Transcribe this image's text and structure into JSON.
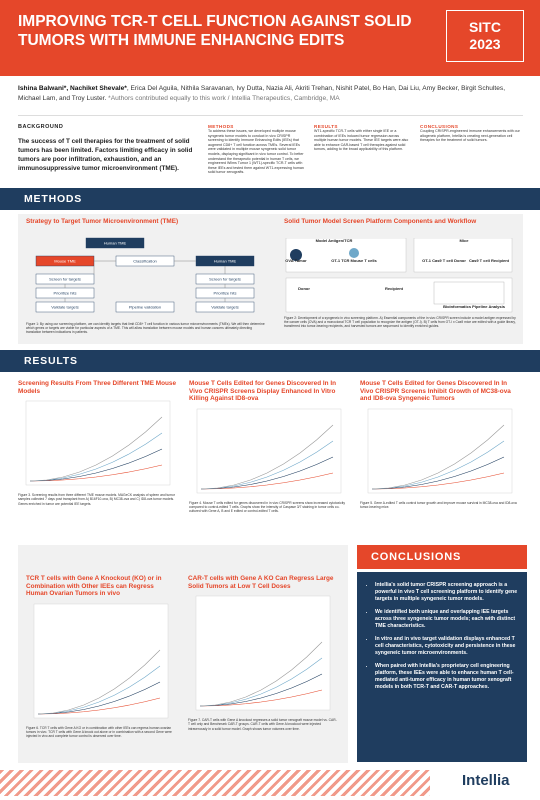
{
  "header": {
    "title": "IMPROVING TCR-T CELL FUNCTION AGAINST SOLID TUMORS WITH IMMUNE ENHANCING EDITS",
    "badge": [
      "SITC",
      "2023"
    ]
  },
  "authors": {
    "lead": "Ishina Balwani*, Nachiket Shevale*",
    "rest": ", Erica Del Aguila, Nithila Saravanan, Ivy Dutta, Nazia Ali, Akriti Trehan, Nishit Patel, Bo Han, Dai Liu, Amy Becker, Birgit Schultes, Michael Lam, and Troy Luster. ",
    "note": "*Authors contributed equally to this work / Intellia Therapeutics, Cambridge, MA"
  },
  "background": {
    "heading": "BACKGROUND",
    "text": "The success of T cell therapies for the treatment of solid tumors has been limited. Factors limiting efficacy in solid tumors are poor infiltration, exhaustion, and an immunosuppressive tumor microenvironment (TME)."
  },
  "intro": [
    {
      "heading": "METHODS",
      "text": "To address these issues, we developed multiple mouse syngeneic tumor models to conduct in vivo CRISPR screening to identify Immune Enhancing Edits (IEEs) that augment CD8+ T cell function across TMEs. Several IEEs were validated in multiple mouse syngeneic solid tumor models, displaying significant in vivo tumor control. To better understand the therapeutic potential in human T cells, we engineered Wilms Tumor 1 (WT1)-specific TCR-T cells with these IEEs and tested them against WT1-expressing human solid tumor xenografts."
    },
    {
      "heading": "RESULTS",
      "text": "WT1-specific TCR-T cells with either single IEE or a combination of IEEs induced tumor regression across multiple human tumor models. These IEE targets were also able to enhance CAR-based T cell therapies against solid tumors, adding to the broad applicability of this platform."
    },
    {
      "heading": "CONCLUSIONS",
      "text": "Coupling CRISPR-engineered immune enhancements with our allogeneic platform, Intellia is creating next-generation cell therapies for the treatment of solid tumors."
    }
  ],
  "methods": {
    "banner": "METHODS",
    "fig1": {
      "title": "Strategy to Target Tumor Microenvironment (TME)",
      "nodes": [
        "Human TME",
        "Mouse TME",
        "Human TME",
        "Classification",
        "Screen for targets",
        "Screen for targets",
        "Prioritize hits",
        "Prioritize hits",
        "Validate targets",
        "Validate targets",
        "Pipeline validation"
      ],
      "caption": "Figure 1: By using our screening platform, we can identify targets that limit CD8+ T cell function in various tumor microenvironments (TMEs). We will then determine which genes or targets are viable for particular aspects of a TME. This will allow translation between mouse models and human cancers ultimately directing translation between indications in patients."
    },
    "fig2": {
      "title": "Solid Tumor Model Screen Platform Components and Workflow",
      "labels": [
        "Model Antigen/TCR",
        "Mice",
        "OVA Tumor",
        "OT-1 TCR Mouse T cells",
        "OT-1 Cas9 T cell Donor",
        "Cas9 T cell Recipient",
        "Donor",
        "Recipient",
        "Bioinformatics Pipeline Analysis"
      ],
      "caption": "Figure 2: Development of a syngeneic in vivo screening platform. A) Essential components of the in vivo CRISPR screen include a model antigen expressed by the cancer cells (OVA) and a monoclonal TCR T cell population to recognize the antigen (OT-I). B) T cells from OT-I x Cas9 mice are edited with a guide library, transferred into tumor-bearing recipients, and harvested tumors are sequenced to identify enriched guides."
    }
  },
  "results": {
    "banner": "RESULTS",
    "panels": [
      {
        "title": "Screening Results From Three Different TME Mouse Models",
        "caption": "Figure 3. Screening results from three different TME mouse models. MAGeCK analysis of spleen and tumor samples collected 7 days post transplant from A) B16F10-ova, B) MC38-ova and C) ID8-ova tumor models. Genes enriched in tumor are potential IEE targets."
      },
      {
        "title": "Mouse T Cells Edited for Genes Discovered In In Vivo CRISPR Screens Display Enhanced In Vitro Killing Against ID8-ova",
        "caption": "Figure 4. Mouse T cells edited for genes discovered in in vivo CRISPR screens show increased cytotoxicity compared to control-edited T cells. Graphs show the intensity of Caspase 3/7 staining in tumor cells co-cultured with Gene A, B and E edited or control-edited T cells."
      },
      {
        "title": "Mouse T Cells Edited for Genes Discovered In In Vivo CRISPR Screens Inhibit Growth of MC38-ova and ID8-ova Syngeneic Tumors",
        "caption": "Figure 5. Gene A-edited T cells control tumor growth and improve mouse survival in MC38-ova and ID8-ova tumor-bearing mice."
      }
    ]
  },
  "bottom": {
    "panels": [
      {
        "title": "TCR T cells with Gene A Knockout (KO) or in Combination with Other IEEs can Regress Human Ovarian Tumors in vivo",
        "caption": "Figure 6. TCR T cells with Gene A KO or in combination with other IEEs can regress human ovarian tumors in vivo. TCR T cells with Gene A knock out alone or in combination with a second Gene were injected in vivo and complete tumor control is observed over time."
      },
      {
        "title": "CAR-T cells with Gene A KO Can Regress Large Solid Tumors at Low T Cell Doses",
        "caption": "Figure 7. CAR-T cells with Gene A knockout regresses a solid tumor xenograft mouse model vs. CAR-T cell only and Benchmark CAR-T groups. CAR-T cells with Gene A knockout were injected intravenously in a solid tumor model. Graph shows tumor volumes over time."
      }
    ],
    "conclusions": {
      "banner": "CONCLUSIONS",
      "bullets": [
        "Intellia's solid tumor CRISPR screening approach is a powerful in vivo T cell screening platform to identify gene targets in multiple syngeneic tumor models.",
        "We identified both unique and overlapping IEE targets across three syngeneic tumor models; each with distinct TME characteristics.",
        "In vitro and in vivo target validation displays enhanced T cell characteristics, cytotoxicity and persistence in these syngeneic tumor microenvironments.",
        "When paired with Intellia's proprietary cell engineering platform, these IEEs were able to enhance human T cell-mediated anti-tumor efficacy in human tumor xenograft models in both TCR-T and CAR-T approaches."
      ]
    }
  },
  "footer": {
    "logo": "Intellia"
  }
}
